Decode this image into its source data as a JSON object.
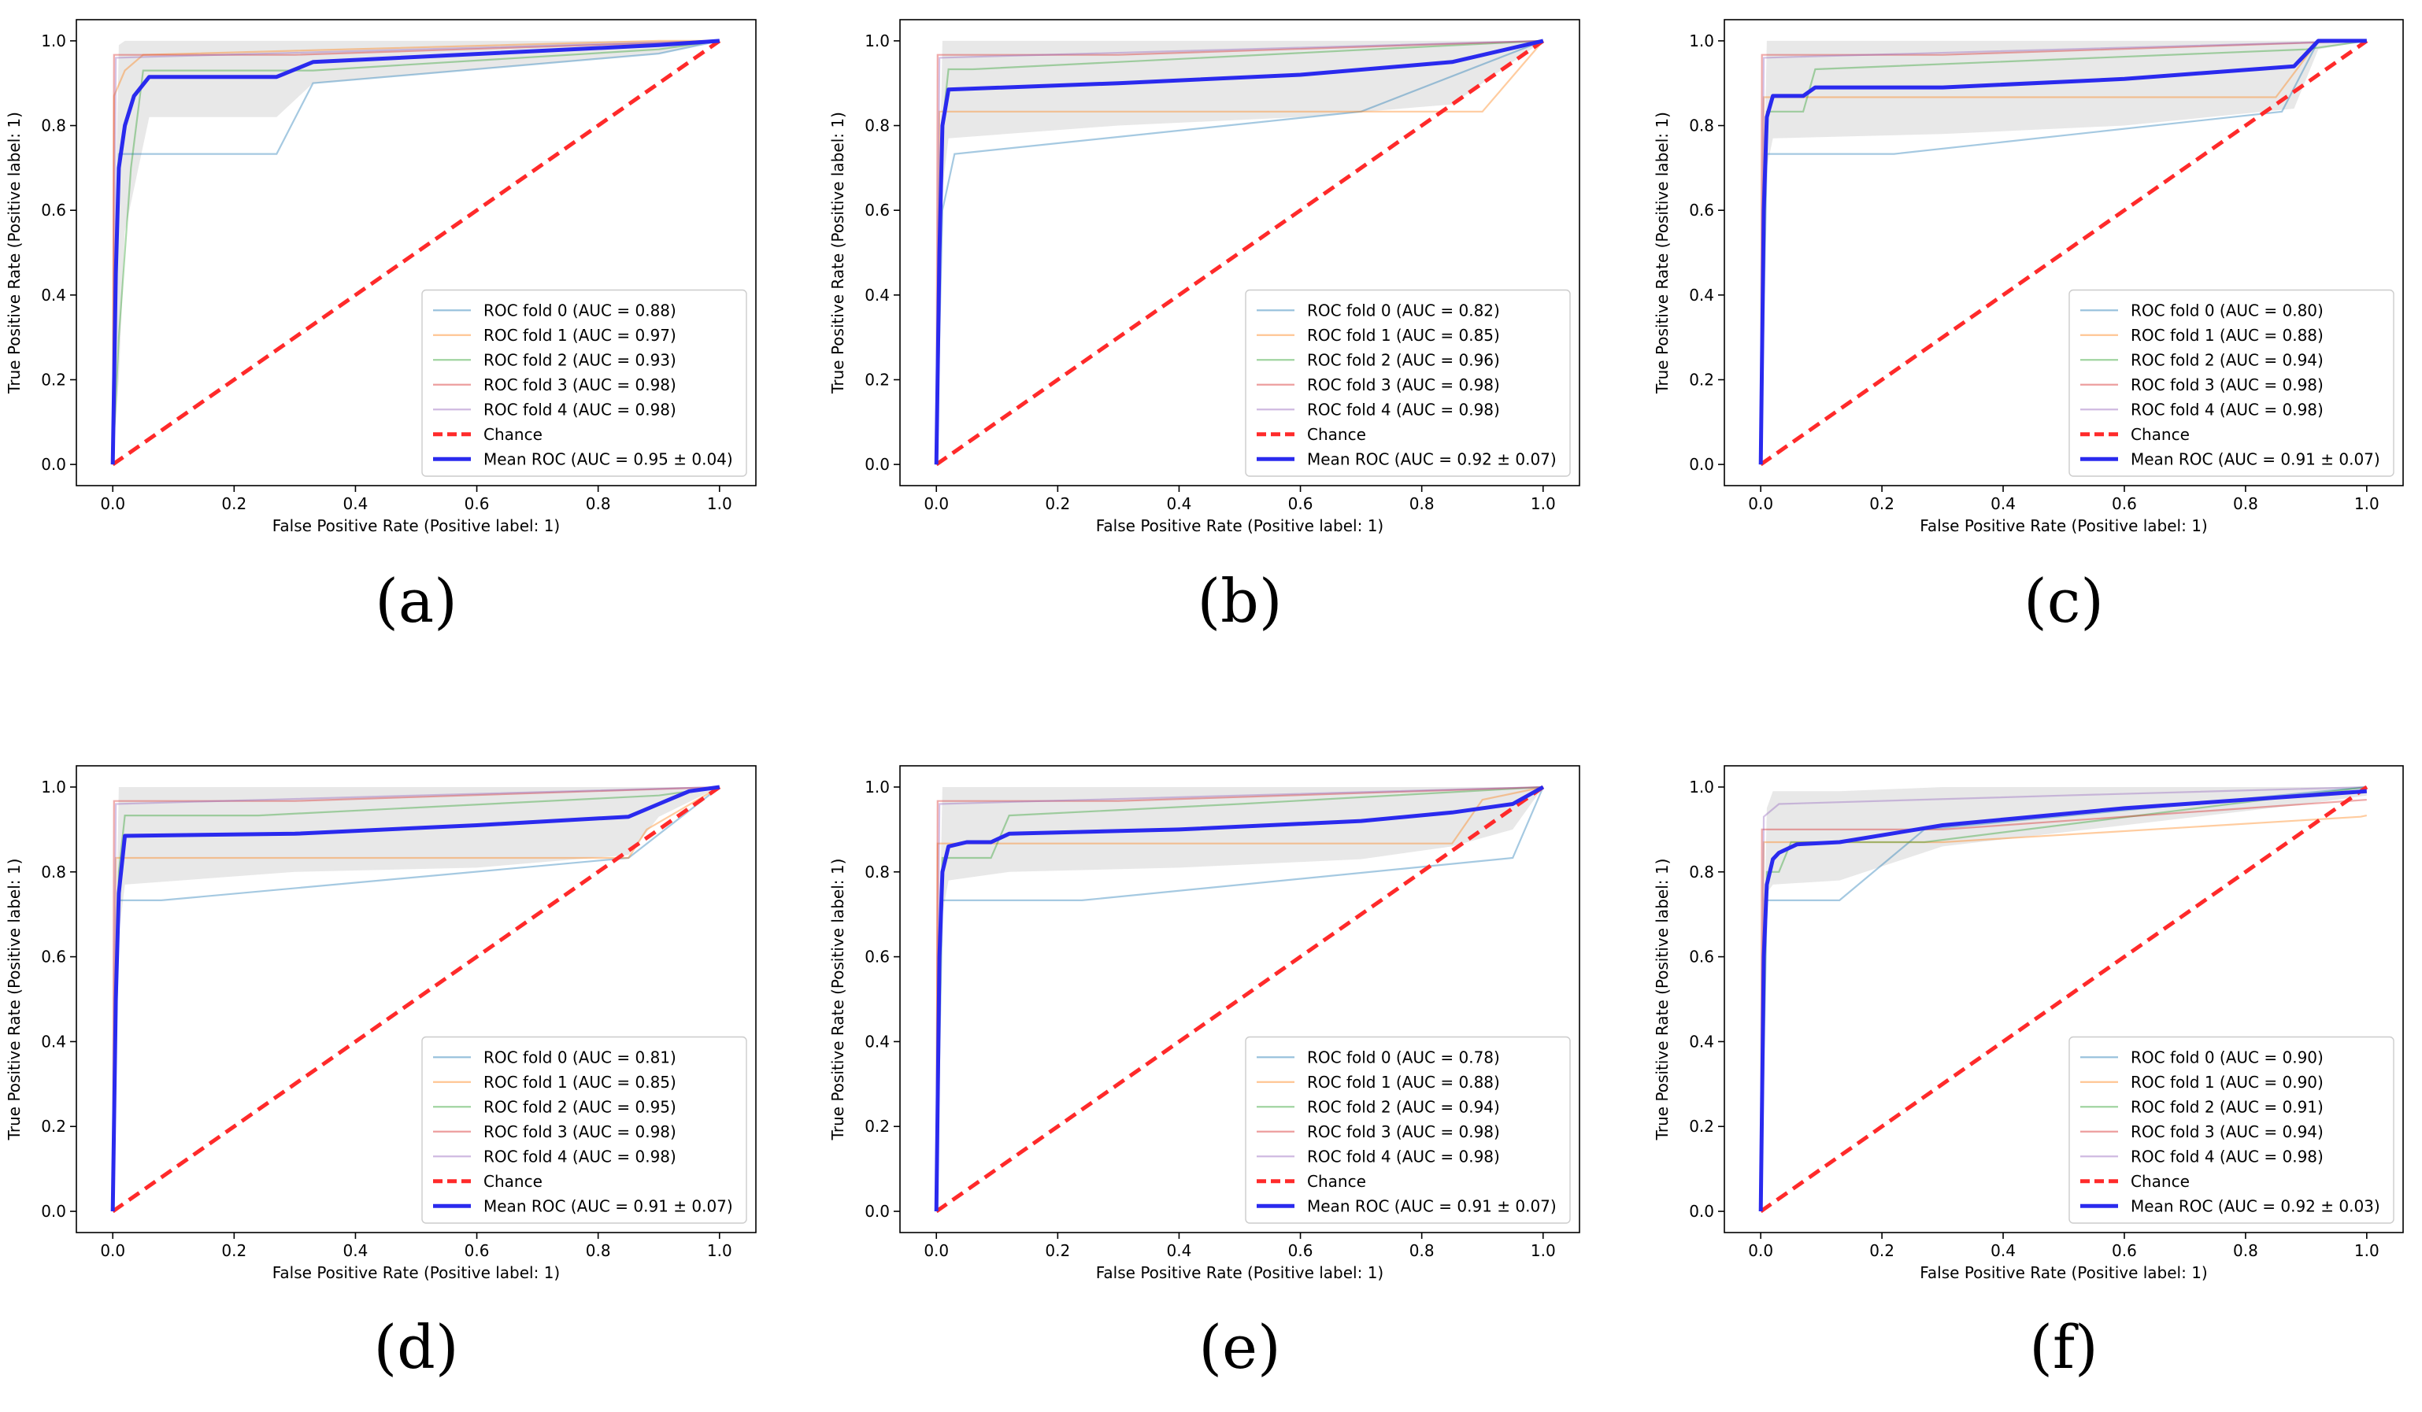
{
  "chart_data": [
    {
      "type": "line",
      "label": "(a)",
      "xlabel": "False Positive Rate (Positive label: 1)",
      "ylabel": "True Positive Rate (Positive label: 1)",
      "xlim": [
        -0.06,
        1.06
      ],
      "ylim": [
        -0.05,
        1.05
      ],
      "xticks": [
        "0.0",
        "0.2",
        "0.4",
        "0.6",
        "0.8",
        "1.0"
      ],
      "yticks": [
        "0.0",
        "0.2",
        "0.4",
        "0.6",
        "0.8",
        "1.0"
      ],
      "legend_position": "lower-right",
      "chance": {
        "name": "Chance",
        "color": "#ff2a2a"
      },
      "series": [
        {
          "name": "ROC fold 0 (AUC = 0.88)",
          "color": "#1f77b4",
          "x": [
            0,
            0.005,
            0.01,
            0.27,
            0.33,
            0.9,
            1.0
          ],
          "y": [
            0,
            0.5,
            0.733,
            0.733,
            0.9,
            0.97,
            1.0
          ]
        },
        {
          "name": "ROC fold 1 (AUC = 0.97)",
          "color": "#ff7f0e",
          "x": [
            0,
            0.002,
            0.02,
            0.05,
            0.9,
            1.0
          ],
          "y": [
            0,
            0.87,
            0.93,
            0.967,
            1.0,
            1.0
          ]
        },
        {
          "name": "ROC fold 2 (AUC = 0.93)",
          "color": "#2ca02c",
          "x": [
            0,
            0.01,
            0.03,
            0.05,
            0.33,
            0.9,
            1.0
          ],
          "y": [
            0,
            0.3,
            0.7,
            0.93,
            0.93,
            0.98,
            1.0
          ]
        },
        {
          "name": "ROC fold 3 (AUC = 0.98)",
          "color": "#d62728",
          "x": [
            0,
            0.002,
            0.3,
            1.0
          ],
          "y": [
            0,
            0.967,
            0.967,
            1.0
          ]
        },
        {
          "name": "ROC fold 4 (AUC = 0.98)",
          "color": "#9467bd",
          "x": [
            0,
            0.005,
            0.5,
            1.0
          ],
          "y": [
            0,
            0.96,
            0.98,
            1.0
          ]
        }
      ],
      "mean": {
        "name": "Mean ROC (AUC = 0.95 ± 0.04)",
        "color": "#2a2aee",
        "x": [
          0,
          0.005,
          0.01,
          0.02,
          0.035,
          0.06,
          0.27,
          0.33,
          0.9,
          1.0
        ],
        "y": [
          0,
          0.45,
          0.7,
          0.8,
          0.87,
          0.915,
          0.915,
          0.95,
          0.99,
          1.0
        ]
      },
      "band": {
        "x": [
          0,
          0.01,
          0.02,
          0.06,
          0.27,
          0.33,
          0.9,
          1.0
        ],
        "upper": [
          0.3,
          0.99,
          1.0,
          1.0,
          1.0,
          1.0,
          1.0,
          1.0
        ],
        "lower": [
          0,
          0.2,
          0.55,
          0.82,
          0.82,
          0.9,
          0.97,
          1.0
        ]
      }
    },
    {
      "type": "line",
      "label": "(b)",
      "xlabel": "False Positive Rate (Positive label: 1)",
      "ylabel": "True Positive Rate (Positive label: 1)",
      "xlim": [
        -0.06,
        1.06
      ],
      "ylim": [
        -0.05,
        1.05
      ],
      "xticks": [
        "0.0",
        "0.2",
        "0.4",
        "0.6",
        "0.8",
        "1.0"
      ],
      "yticks": [
        "0.0",
        "0.2",
        "0.4",
        "0.6",
        "0.8",
        "1.0"
      ],
      "legend_position": "lower-right",
      "chance": {
        "name": "Chance",
        "color": "#ff2a2a"
      },
      "series": [
        {
          "name": "ROC fold 0 (AUC = 0.82)",
          "color": "#1f77b4",
          "x": [
            0,
            0.01,
            0.03,
            0.7,
            1.0
          ],
          "y": [
            0,
            0.6,
            0.733,
            0.833,
            1.0
          ]
        },
        {
          "name": "ROC fold 1 (AUC = 0.85)",
          "color": "#ff7f0e",
          "x": [
            0,
            0.005,
            0.9,
            1.0
          ],
          "y": [
            0,
            0.833,
            0.833,
            1.0
          ]
        },
        {
          "name": "ROC fold 2 (AUC = 0.96)",
          "color": "#2ca02c",
          "x": [
            0,
            0.01,
            0.02,
            0.06,
            1.0
          ],
          "y": [
            0,
            0.8,
            0.933,
            0.933,
            1.0
          ]
        },
        {
          "name": "ROC fold 3 (AUC = 0.98)",
          "color": "#d62728",
          "x": [
            0,
            0.002,
            0.3,
            1.0
          ],
          "y": [
            0,
            0.967,
            0.967,
            1.0
          ]
        },
        {
          "name": "ROC fold 4 (AUC = 0.98)",
          "color": "#9467bd",
          "x": [
            0,
            0.005,
            0.5,
            1.0
          ],
          "y": [
            0,
            0.96,
            0.98,
            1.0
          ]
        }
      ],
      "mean": {
        "name": "Mean ROC (AUC = 0.92 ± 0.07)",
        "color": "#2a2aee",
        "x": [
          0,
          0.005,
          0.01,
          0.02,
          0.3,
          0.6,
          0.85,
          1.0
        ],
        "y": [
          0,
          0.5,
          0.8,
          0.885,
          0.9,
          0.92,
          0.95,
          1.0
        ]
      },
      "band": {
        "x": [
          0,
          0.01,
          0.02,
          0.3,
          0.6,
          0.85,
          1.0
        ],
        "upper": [
          0.3,
          1.0,
          1.0,
          1.0,
          1.0,
          1.0,
          1.0
        ],
        "lower": [
          0,
          0.65,
          0.77,
          0.8,
          0.82,
          0.85,
          1.0
        ]
      }
    },
    {
      "type": "line",
      "label": "(c)",
      "xlabel": "False Positive Rate (Positive label: 1)",
      "ylabel": "True Positive Rate (Positive label: 1)",
      "xlim": [
        -0.06,
        1.06
      ],
      "ylim": [
        -0.05,
        1.05
      ],
      "xticks": [
        "0.0",
        "0.2",
        "0.4",
        "0.6",
        "0.8",
        "1.0"
      ],
      "yticks": [
        "0.0",
        "0.2",
        "0.4",
        "0.6",
        "0.8",
        "1.0"
      ],
      "legend_position": "lower-right",
      "chance": {
        "name": "Chance",
        "color": "#ff2a2a"
      },
      "series": [
        {
          "name": "ROC fold 0 (AUC = 0.80)",
          "color": "#1f77b4",
          "x": [
            0,
            0.01,
            0.22,
            0.86,
            0.92,
            1.0
          ],
          "y": [
            0,
            0.733,
            0.733,
            0.833,
            1.0,
            1.0
          ]
        },
        {
          "name": "ROC fold 1 (AUC = 0.88)",
          "color": "#ff7f0e",
          "x": [
            0,
            0.005,
            0.85,
            0.92,
            1.0
          ],
          "y": [
            0,
            0.867,
            0.867,
            1.0,
            1.0
          ]
        },
        {
          "name": "ROC fold 2 (AUC = 0.94)",
          "color": "#2ca02c",
          "x": [
            0,
            0.01,
            0.07,
            0.09,
            0.9,
            1.0
          ],
          "y": [
            0,
            0.833,
            0.833,
            0.933,
            0.98,
            1.0
          ]
        },
        {
          "name": "ROC fold 3 (AUC = 0.98)",
          "color": "#d62728",
          "x": [
            0,
            0.002,
            0.3,
            1.0
          ],
          "y": [
            0,
            0.967,
            0.967,
            1.0
          ]
        },
        {
          "name": "ROC fold 4 (AUC = 0.98)",
          "color": "#9467bd",
          "x": [
            0,
            0.005,
            0.5,
            1.0
          ],
          "y": [
            0,
            0.96,
            0.98,
            1.0
          ]
        }
      ],
      "mean": {
        "name": "Mean ROC (AUC = 0.91 ± 0.07)",
        "color": "#2a2aee",
        "x": [
          0,
          0.005,
          0.01,
          0.02,
          0.07,
          0.09,
          0.3,
          0.6,
          0.88,
          0.92,
          1.0
        ],
        "y": [
          0,
          0.6,
          0.82,
          0.87,
          0.87,
          0.89,
          0.89,
          0.91,
          0.94,
          1.0,
          1.0
        ]
      },
      "band": {
        "x": [
          0,
          0.01,
          0.02,
          0.3,
          0.6,
          0.88,
          0.92,
          1.0
        ],
        "upper": [
          0.3,
          1.0,
          1.0,
          1.0,
          1.0,
          1.0,
          1.0,
          1.0
        ],
        "lower": [
          0,
          0.7,
          0.77,
          0.78,
          0.8,
          0.84,
          0.98,
          1.0
        ]
      }
    },
    {
      "type": "line",
      "label": "(d)",
      "xlabel": "False Positive Rate (Positive label: 1)",
      "ylabel": "True Positive Rate (Positive label: 1)",
      "xlim": [
        -0.06,
        1.06
      ],
      "ylim": [
        -0.05,
        1.05
      ],
      "xticks": [
        "0.0",
        "0.2",
        "0.4",
        "0.6",
        "0.8",
        "1.0"
      ],
      "yticks": [
        "0.0",
        "0.2",
        "0.4",
        "0.6",
        "0.8",
        "1.0"
      ],
      "legend_position": "lower-right",
      "chance": {
        "name": "Chance",
        "color": "#ff2a2a"
      },
      "series": [
        {
          "name": "ROC fold 0 (AUC = 0.81)",
          "color": "#1f77b4",
          "x": [
            0,
            0.01,
            0.08,
            0.85,
            1.0
          ],
          "y": [
            0,
            0.733,
            0.733,
            0.833,
            1.0
          ]
        },
        {
          "name": "ROC fold 1 (AUC = 0.85)",
          "color": "#ff7f0e",
          "x": [
            0,
            0.005,
            0.85,
            0.88,
            1.0
          ],
          "y": [
            0,
            0.833,
            0.833,
            0.9,
            1.0
          ]
        },
        {
          "name": "ROC fold 2 (AUC = 0.95)",
          "color": "#2ca02c",
          "x": [
            0,
            0.01,
            0.02,
            0.24,
            0.9,
            1.0
          ],
          "y": [
            0,
            0.8,
            0.933,
            0.933,
            0.98,
            1.0
          ]
        },
        {
          "name": "ROC fold 3 (AUC = 0.98)",
          "color": "#d62728",
          "x": [
            0,
            0.002,
            0.3,
            1.0
          ],
          "y": [
            0,
            0.967,
            0.967,
            1.0
          ]
        },
        {
          "name": "ROC fold 4 (AUC = 0.98)",
          "color": "#9467bd",
          "x": [
            0,
            0.005,
            0.5,
            1.0
          ],
          "y": [
            0,
            0.96,
            0.98,
            1.0
          ]
        }
      ],
      "mean": {
        "name": "Mean ROC (AUC = 0.91 ± 0.07)",
        "color": "#2a2aee",
        "x": [
          0,
          0.005,
          0.01,
          0.02,
          0.3,
          0.6,
          0.85,
          0.9,
          0.95,
          1.0
        ],
        "y": [
          0,
          0.5,
          0.75,
          0.885,
          0.89,
          0.91,
          0.93,
          0.96,
          0.99,
          1.0
        ]
      },
      "band": {
        "x": [
          0,
          0.01,
          0.02,
          0.3,
          0.6,
          0.85,
          0.9,
          1.0
        ],
        "upper": [
          0.3,
          1.0,
          1.0,
          1.0,
          1.0,
          1.0,
          1.0,
          1.0
        ],
        "lower": [
          0,
          0.65,
          0.77,
          0.8,
          0.81,
          0.84,
          0.93,
          1.0
        ]
      }
    },
    {
      "type": "line",
      "label": "(e)",
      "xlabel": "False Positive Rate (Positive label: 1)",
      "ylabel": "True Positive Rate (Positive label: 1)",
      "xlim": [
        -0.06,
        1.06
      ],
      "ylim": [
        -0.05,
        1.05
      ],
      "xticks": [
        "0.0",
        "0.2",
        "0.4",
        "0.6",
        "0.8",
        "1.0"
      ],
      "yticks": [
        "0.0",
        "0.2",
        "0.4",
        "0.6",
        "0.8",
        "1.0"
      ],
      "legend_position": "lower-right",
      "chance": {
        "name": "Chance",
        "color": "#ff2a2a"
      },
      "series": [
        {
          "name": "ROC fold 0 (AUC = 0.78)",
          "color": "#1f77b4",
          "x": [
            0,
            0.01,
            0.24,
            0.95,
            1.0
          ],
          "y": [
            0,
            0.733,
            0.733,
            0.833,
            1.0
          ]
        },
        {
          "name": "ROC fold 1 (AUC = 0.88)",
          "color": "#ff7f0e",
          "x": [
            0,
            0.002,
            0.85,
            0.9,
            1.0
          ],
          "y": [
            0,
            0.867,
            0.867,
            0.97,
            1.0
          ]
        },
        {
          "name": "ROC fold 2 (AUC = 0.94)",
          "color": "#2ca02c",
          "x": [
            0,
            0.01,
            0.09,
            0.12,
            0.5,
            1.0
          ],
          "y": [
            0,
            0.833,
            0.833,
            0.933,
            0.96,
            1.0
          ]
        },
        {
          "name": "ROC fold 3 (AUC = 0.98)",
          "color": "#d62728",
          "x": [
            0,
            0.002,
            0.3,
            1.0
          ],
          "y": [
            0,
            0.967,
            0.967,
            1.0
          ]
        },
        {
          "name": "ROC fold 4 (AUC = 0.98)",
          "color": "#9467bd",
          "x": [
            0,
            0.005,
            0.5,
            1.0
          ],
          "y": [
            0,
            0.96,
            0.98,
            1.0
          ]
        }
      ],
      "mean": {
        "name": "Mean ROC (AUC = 0.91 ± 0.07)",
        "color": "#2a2aee",
        "x": [
          0,
          0.005,
          0.01,
          0.02,
          0.05,
          0.09,
          0.12,
          0.4,
          0.7,
          0.85,
          0.95,
          1.0
        ],
        "y": [
          0,
          0.6,
          0.8,
          0.86,
          0.87,
          0.87,
          0.89,
          0.9,
          0.92,
          0.94,
          0.96,
          1.0
        ]
      },
      "band": {
        "x": [
          0,
          0.01,
          0.02,
          0.12,
          0.4,
          0.7,
          0.85,
          0.95,
          1.0
        ],
        "upper": [
          0.3,
          1.0,
          1.0,
          1.0,
          1.0,
          1.0,
          1.0,
          1.0,
          1.0
        ],
        "lower": [
          0,
          0.7,
          0.78,
          0.8,
          0.81,
          0.83,
          0.86,
          0.9,
          1.0
        ]
      }
    },
    {
      "type": "line",
      "label": "(f)",
      "xlabel": "False Positive Rate (Positive label: 1)",
      "ylabel": "True Positive Rate (Positive label: 1)",
      "xlim": [
        -0.06,
        1.06
      ],
      "ylim": [
        -0.05,
        1.05
      ],
      "xticks": [
        "0.0",
        "0.2",
        "0.4",
        "0.6",
        "0.8",
        "1.0"
      ],
      "yticks": [
        "0.0",
        "0.2",
        "0.4",
        "0.6",
        "0.8",
        "1.0"
      ],
      "legend_position": "lower-right",
      "chance": {
        "name": "Chance",
        "color": "#ff2a2a"
      },
      "series": [
        {
          "name": "ROC fold 0 (AUC = 0.90)",
          "color": "#1f77b4",
          "x": [
            0,
            0.01,
            0.13,
            0.27,
            1.0
          ],
          "y": [
            0,
            0.733,
            0.733,
            0.9,
            1.0
          ]
        },
        {
          "name": "ROC fold 1 (AUC = 0.90)",
          "color": "#ff7f0e",
          "x": [
            0,
            0.005,
            0.3,
            0.99,
            1.0
          ],
          "y": [
            0,
            0.87,
            0.87,
            0.93,
            0.933
          ]
        },
        {
          "name": "ROC fold 2 (AUC = 0.91)",
          "color": "#2ca02c",
          "x": [
            0,
            0.01,
            0.03,
            0.05,
            0.27,
            1.0
          ],
          "y": [
            0,
            0.8,
            0.8,
            0.87,
            0.87,
            1.0
          ]
        },
        {
          "name": "ROC fold 3 (AUC = 0.94)",
          "color": "#d62728",
          "x": [
            0,
            0.002,
            0.3,
            1.0
          ],
          "y": [
            0,
            0.9,
            0.9,
            0.97
          ]
        },
        {
          "name": "ROC fold 4 (AUC = 0.98)",
          "color": "#9467bd",
          "x": [
            0,
            0.005,
            0.03,
            0.5,
            1.0
          ],
          "y": [
            0,
            0.93,
            0.96,
            0.98,
            1.0
          ]
        }
      ],
      "mean": {
        "name": "Mean ROC (AUC = 0.92 ± 0.03)",
        "color": "#2a2aee",
        "x": [
          0,
          0.005,
          0.01,
          0.02,
          0.03,
          0.06,
          0.13,
          0.3,
          0.6,
          0.9,
          1.0
        ],
        "y": [
          0,
          0.6,
          0.77,
          0.83,
          0.845,
          0.865,
          0.87,
          0.91,
          0.95,
          0.98,
          0.99
        ]
      },
      "band": {
        "x": [
          0,
          0.01,
          0.02,
          0.13,
          0.3,
          0.6,
          0.9,
          1.0
        ],
        "upper": [
          0.3,
          0.95,
          0.99,
          0.99,
          1.0,
          1.0,
          1.0,
          1.0
        ],
        "lower": [
          0,
          0.75,
          0.77,
          0.78,
          0.86,
          0.91,
          0.96,
          0.98
        ]
      }
    }
  ]
}
